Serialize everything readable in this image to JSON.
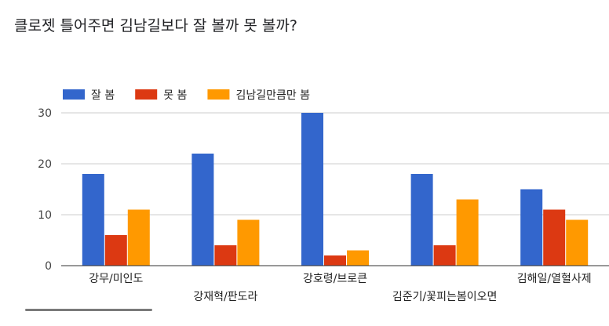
{
  "chart_data": {
    "type": "bar",
    "title": "클로젯 틀어주면 김남길보다 잘 볼까 못 볼까?",
    "categories": [
      "강무/미인도",
      "강재혁/판도라",
      "강호령/브로큰",
      "김준기/꽃피는봄이오면",
      "김해일/열혈사제"
    ],
    "series": [
      {
        "name": "잘 봄",
        "color": "#3366cc",
        "values": [
          18,
          22,
          30,
          18,
          15
        ]
      },
      {
        "name": "못 봄",
        "color": "#dc3912",
        "values": [
          6,
          4,
          2,
          4,
          11
        ]
      },
      {
        "name": "김남길만큼만 봄",
        "color": "#ff9900",
        "values": [
          11,
          9,
          3,
          13,
          9
        ]
      }
    ],
    "yticks": [
      0,
      10,
      20,
      30
    ],
    "ylim": [
      0,
      30
    ],
    "grid": true,
    "legend_position": "top-left"
  }
}
